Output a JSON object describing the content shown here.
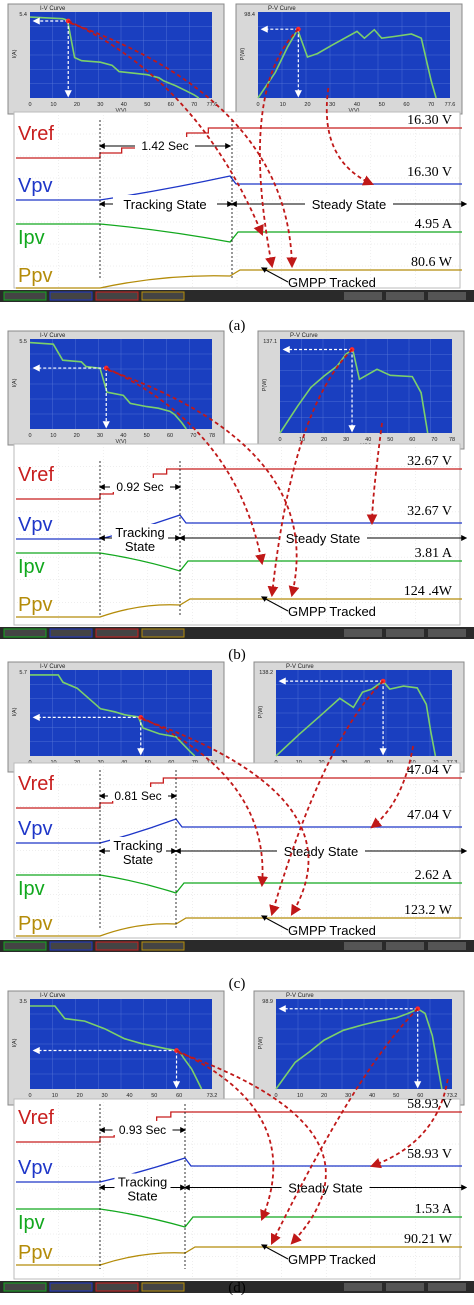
{
  "captions": [
    "(a)",
    "(b)",
    "(c)",
    "(d)"
  ],
  "common": {
    "iv_title": "I-V Curve",
    "pv_title": "P-V Curve",
    "iv_ylabel": "I(A)",
    "pv_ylabel": "P(W)",
    "xlabel": "V(V)",
    "channels": [
      "Vref",
      "Vpv",
      "Ipv",
      "Ppv"
    ],
    "tracking_label": "Tracking State",
    "tracking_label_top": "Tracking",
    "tracking_label_bottom": "State",
    "steady_label": "Steady State",
    "gmpp_label": "GMPP Tracked"
  },
  "colors": {
    "plot_bg": "#1a3fc0",
    "curve": "#7cd06a",
    "marker": "#ff2a2a",
    "arrow": "#c01818",
    "vref": "#c81e1e",
    "vpv": "#1e36c8",
    "ipv": "#12a81e",
    "ppv": "#b48c0a",
    "status": "#2a2a2a"
  },
  "chart_data": [
    {
      "type": "line",
      "panel": "(a)",
      "iv_ymax": 5.4,
      "pv_ymax": 98.4,
      "xticks": [
        0,
        10,
        20,
        30,
        40,
        50,
        60,
        70,
        77.6
      ],
      "x_max": 77.6,
      "iv_curve": {
        "x": [
          0,
          14,
          16,
          19,
          22,
          30,
          35,
          38,
          50,
          55,
          57,
          62,
          66,
          70,
          72
        ],
        "y": [
          5.2,
          5.1,
          5.0,
          2.6,
          2.4,
          2.3,
          2.1,
          1.7,
          1.5,
          1.3,
          1.1,
          0.8,
          0.5,
          0.2,
          0
        ]
      },
      "pv_curve": {
        "x": [
          0,
          7,
          12,
          16,
          20,
          24,
          30,
          40,
          43,
          47,
          50,
          55,
          62,
          66,
          70,
          72
        ],
        "y": [
          0,
          30,
          60,
          80,
          48,
          52,
          62,
          78,
          70,
          80,
          70,
          72,
          75,
          70,
          20,
          0
        ]
      },
      "mpp": {
        "v": 16.3,
        "i": 4.95,
        "p": 80.6
      },
      "tracking_time": "1.42 Sec",
      "readouts": [
        "16.30 V",
        "16.30 V",
        "4.95 A",
        "80.6 W"
      ]
    },
    {
      "type": "line",
      "panel": "(b)",
      "iv_ymax": 5.5,
      "pv_ymax": 137.1,
      "xticks": [
        0,
        10,
        20,
        30,
        40,
        50,
        60,
        70,
        78
      ],
      "x_max": 78,
      "iv_curve": {
        "x": [
          0,
          10,
          14,
          22,
          24,
          30,
          33,
          40,
          43,
          50,
          55,
          60,
          62,
          65,
          67
        ],
        "y": [
          5.4,
          5.3,
          4.3,
          4.2,
          3.9,
          3.8,
          2.3,
          2.1,
          1.6,
          1.4,
          1.3,
          1.1,
          0.9,
          0.4,
          0
        ]
      },
      "pv_curve": {
        "x": [
          0,
          8,
          14,
          20,
          26,
          30,
          33,
          36,
          44,
          50,
          60,
          64,
          67
        ],
        "y": [
          0,
          40,
          68,
          85,
          100,
          118,
          124,
          80,
          95,
          86,
          84,
          60,
          0
        ]
      },
      "mpp": {
        "v": 32.67,
        "i": 3.81,
        "p": 124.4
      },
      "tracking_time": "0.92 Sec",
      "readouts": [
        "32.67 V",
        "32.67 V",
        "3.81 A",
        "124 .4W"
      ]
    },
    {
      "type": "line",
      "panel": "(c)",
      "iv_ymax": 5.7,
      "pv_ymax": 138.2,
      "xticks": [
        0,
        10,
        20,
        30,
        40,
        50,
        60,
        70,
        77.3
      ],
      "x_max": 77.3,
      "iv_curve": {
        "x": [
          0,
          12,
          14,
          20,
          30,
          36,
          40,
          46,
          48,
          55,
          62,
          65,
          68,
          70
        ],
        "y": [
          5.5,
          5.5,
          5.0,
          4.6,
          3.2,
          3.0,
          2.8,
          2.65,
          1.9,
          1.5,
          1.3,
          0.8,
          0.3,
          0
        ]
      },
      "pv_curve": {
        "x": [
          0,
          10,
          20,
          28,
          34,
          38,
          42,
          47,
          50,
          56,
          62,
          66,
          68,
          70
        ],
        "y": [
          0,
          35,
          68,
          95,
          80,
          105,
          110,
          123,
          110,
          115,
          112,
          85,
          40,
          0
        ]
      },
      "mpp": {
        "v": 47.04,
        "i": 2.62,
        "p": 123.2
      },
      "tracking_time": "0.81 Sec",
      "readouts": [
        "47.04 V",
        "47.04 V",
        "2.62 A",
        "123.2 W"
      ]
    },
    {
      "type": "line",
      "panel": "(d)",
      "iv_ymax": 3.5,
      "pv_ymax": 98.9,
      "xticks": [
        0,
        10,
        20,
        30,
        40,
        50,
        60,
        73.2
      ],
      "x_max": 73.2,
      "iv_curve": {
        "x": [
          0,
          10,
          14,
          22,
          30,
          38,
          45,
          55,
          58,
          60,
          62,
          65,
          67,
          69
        ],
        "y": [
          3.3,
          3.3,
          2.8,
          2.7,
          2.4,
          2.0,
          1.8,
          1.6,
          1.55,
          1.5,
          1.2,
          0.8,
          0.4,
          0
        ]
      },
      "pv_curve": {
        "x": [
          0,
          8,
          14,
          20,
          28,
          36,
          42,
          50,
          55,
          59,
          62,
          65,
          67,
          69
        ],
        "y": [
          0,
          30,
          42,
          55,
          66,
          72,
          76,
          80,
          85,
          90,
          85,
          60,
          30,
          0
        ]
      },
      "mpp": {
        "v": 58.93,
        "i": 1.53,
        "p": 90.21
      },
      "tracking_time": "0.93 Sec",
      "readouts": [
        "58.93 V",
        "58.93 V",
        "1.53 A",
        "90.21 W"
      ]
    }
  ]
}
